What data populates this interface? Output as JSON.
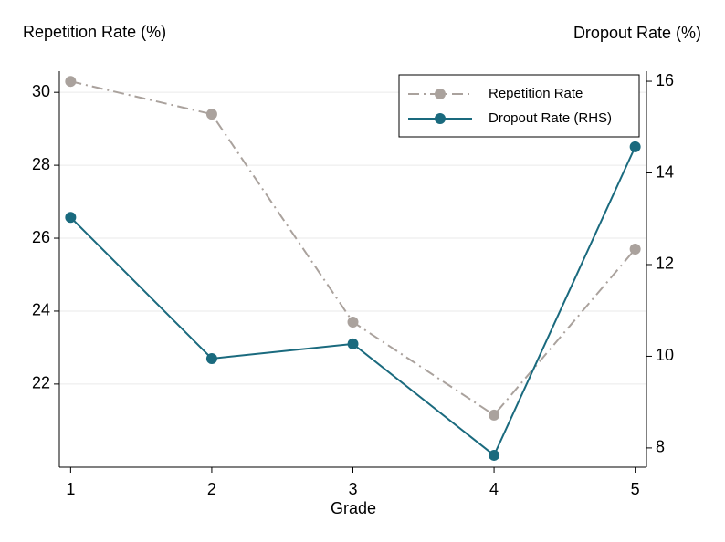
{
  "chart_data": {
    "type": "line",
    "y_label": "Repetition Rate (%)",
    "y2_label": "Dropout Rate (%)",
    "x_label": "Grade",
    "x": [
      1,
      2,
      3,
      4,
      5
    ],
    "xlim": [
      0.92,
      5.08
    ],
    "xticks": [
      1,
      2,
      3,
      4,
      5
    ],
    "ylim": [
      19.72,
      30.58
    ],
    "yticks": [
      22,
      24,
      26,
      28,
      30
    ],
    "y2lim": [
      7.58,
      16.22
    ],
    "y2ticks": [
      8,
      10,
      12,
      14,
      16
    ],
    "grid": true,
    "legend": "top-right",
    "series": [
      {
        "name": "Repetition Rate",
        "color": "#aaa29d",
        "dash": "dashdot",
        "values": [
          30.3,
          29.4,
          23.7,
          21.15,
          25.7
        ]
      },
      {
        "name": "Dropout Rate (RHS)",
        "color": "#1a6a7e",
        "dash": "solid",
        "axis": "y2",
        "values": [
          13.03,
          9.95,
          10.27,
          7.84,
          14.57
        ]
      }
    ]
  }
}
